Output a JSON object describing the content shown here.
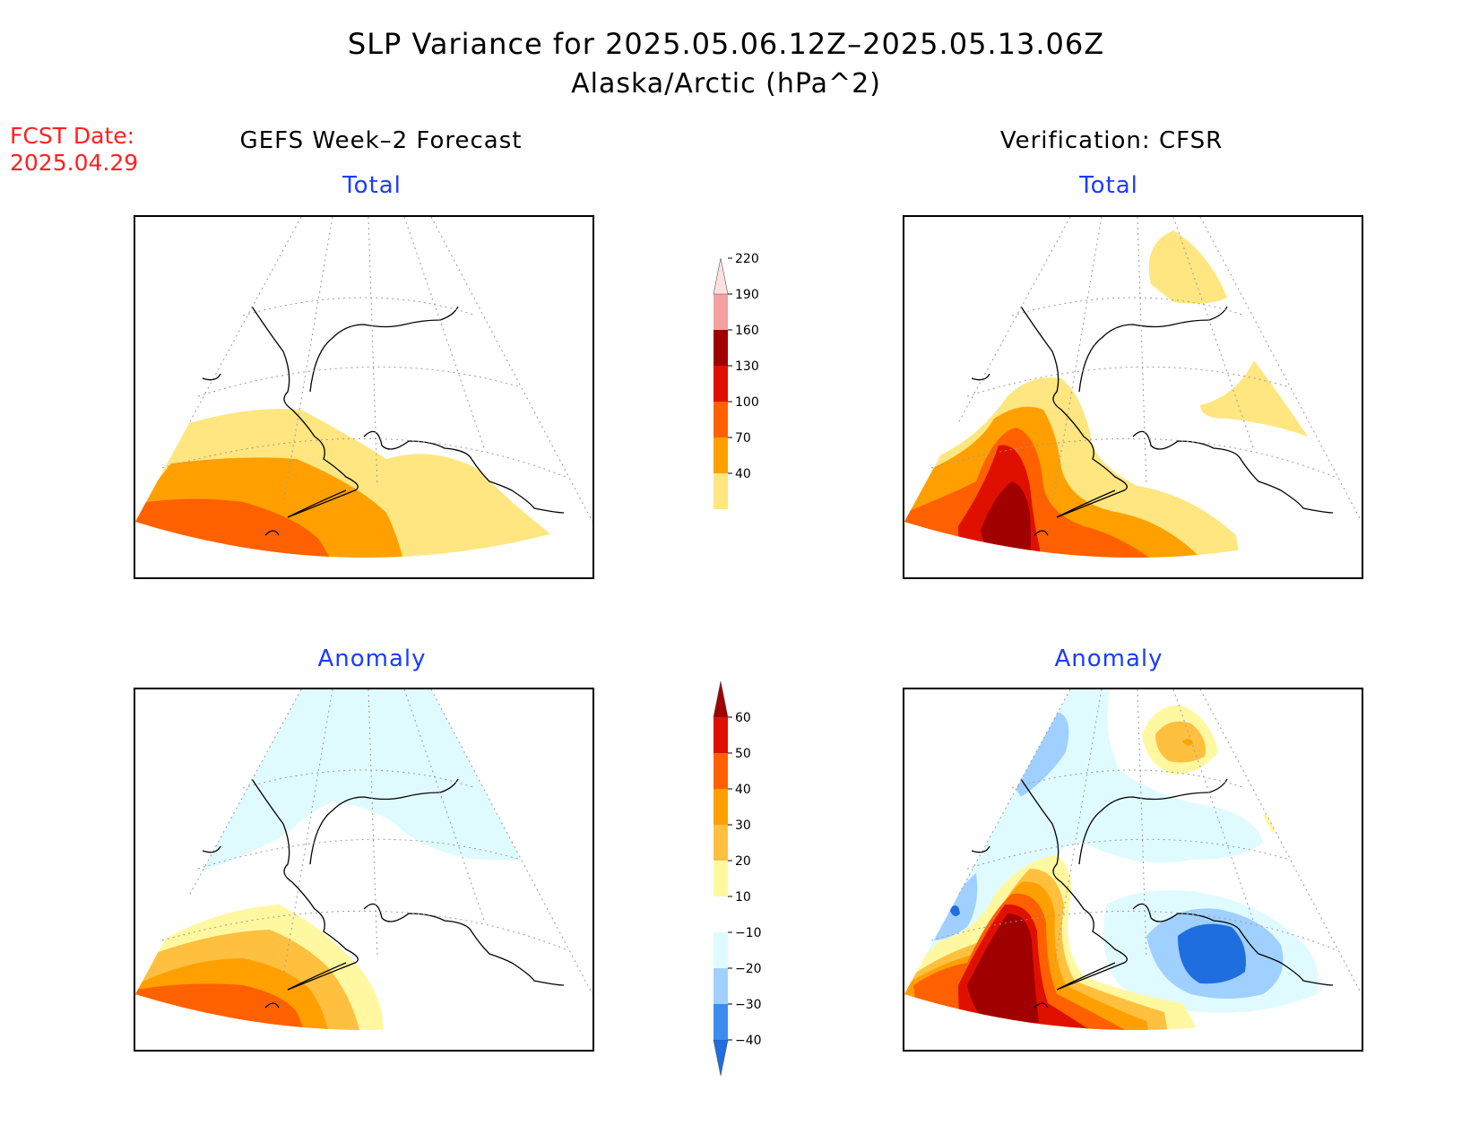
{
  "title": "SLP Variance for 2025.05.06.12Z–2025.05.13.06Z",
  "subtitle": "Alaska/Arctic (hPa^2)",
  "forecast_date": {
    "label": "FCST Date:",
    "value": "2025.04.29"
  },
  "columns": {
    "left": "GEFS Week–2 Forecast",
    "right": "Verification: CFSR"
  },
  "panels": {
    "total_label": "Total",
    "anomaly_label": "Anomaly"
  },
  "colorbars": {
    "total": {
      "levels": [
        "40",
        "70",
        "100",
        "130",
        "160",
        "190",
        "220"
      ],
      "colors": [
        "#ffe680",
        "#ffa000",
        "#ff6000",
        "#e01000",
        "#a00000",
        "#f4a0a0",
        "#ffe0e0"
      ]
    },
    "anomaly": {
      "levels": [
        "−40",
        "−30",
        "−20",
        "−10",
        "10",
        "20",
        "30",
        "40",
        "50",
        "60"
      ],
      "colors": [
        "#1e6ee0",
        "#3c8cf0",
        "#a0d0ff",
        "#e0fbff",
        "#ffffff",
        "#fff8a0",
        "#ffc040",
        "#ffa000",
        "#ff6000",
        "#e01000",
        "#a00000"
      ]
    }
  }
}
